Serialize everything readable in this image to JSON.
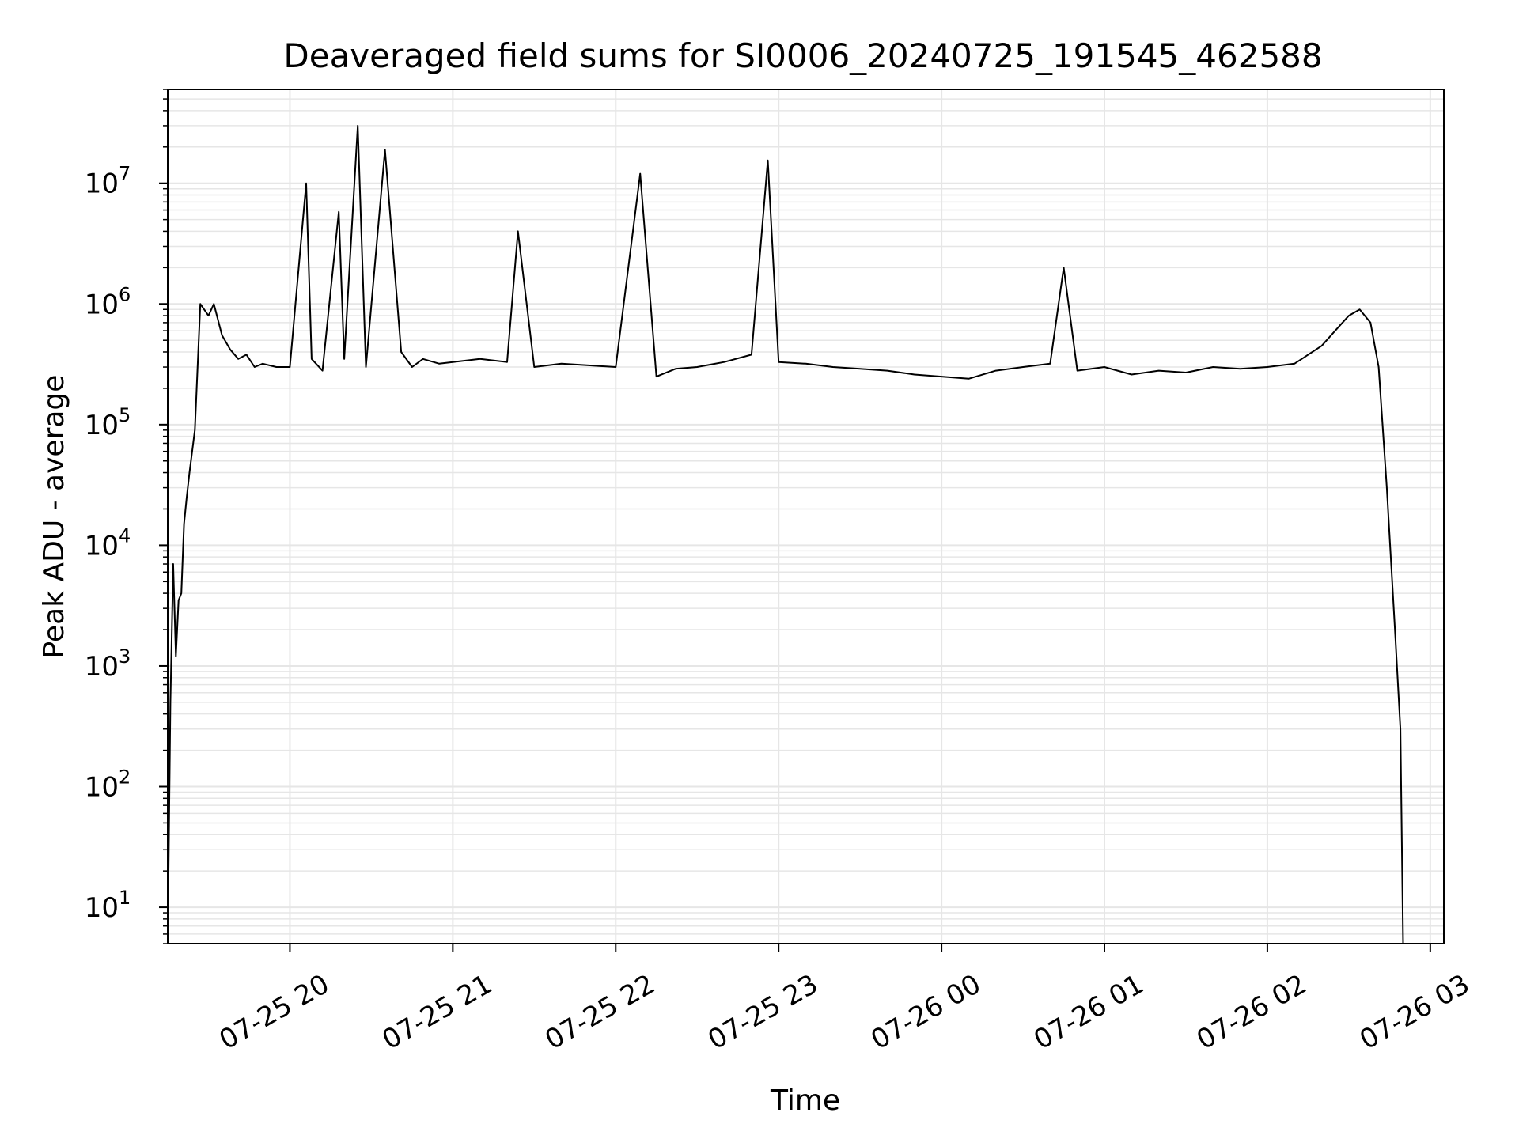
{
  "chart_data": {
    "type": "line",
    "title": "Deaveraged field sums for SI0006_20240725_191545_462588",
    "xlabel": "Time",
    "ylabel": "Peak ADU - average",
    "y_scale": "log",
    "ylim": [
      5,
      60000000
    ],
    "xlim": [
      "2024-07-25 19:15",
      "2024-07-26 03:05"
    ],
    "grid": "on (major and minor)",
    "line_color": "#000000",
    "grid_color": "#e6e6e6",
    "x_ticks": [
      {
        "t": "2024-07-25 20:00",
        "label": "07-25 20"
      },
      {
        "t": "2024-07-25 21:00",
        "label": "07-25 21"
      },
      {
        "t": "2024-07-25 22:00",
        "label": "07-25 22"
      },
      {
        "t": "2024-07-25 23:00",
        "label": "07-25 23"
      },
      {
        "t": "2024-07-26 00:00",
        "label": "07-26 00"
      },
      {
        "t": "2024-07-26 01:00",
        "label": "07-26 01"
      },
      {
        "t": "2024-07-26 02:00",
        "label": "07-26 02"
      },
      {
        "t": "2024-07-26 03:00",
        "label": "07-26 03"
      }
    ],
    "y_ticks": [
      {
        "v": 10,
        "base": "10",
        "exp": "1"
      },
      {
        "v": 100,
        "base": "10",
        "exp": "2"
      },
      {
        "v": 1000,
        "base": "10",
        "exp": "3"
      },
      {
        "v": 10000,
        "base": "10",
        "exp": "4"
      },
      {
        "v": 100000,
        "base": "10",
        "exp": "5"
      },
      {
        "v": 1000000,
        "base": "10",
        "exp": "6"
      },
      {
        "v": 10000000,
        "base": "10",
        "exp": "7"
      }
    ],
    "series": [
      {
        "x": [
          "2024-07-25 19:15",
          "2024-07-25 19:16",
          "2024-07-25 19:17",
          "2024-07-25 19:18",
          "2024-07-25 19:19",
          "2024-07-25 19:20",
          "2024-07-25 19:21",
          "2024-07-25 19:22",
          "2024-07-25 19:23",
          "2024-07-25 19:25",
          "2024-07-25 19:27",
          "2024-07-25 19:30",
          "2024-07-25 19:32",
          "2024-07-25 19:35",
          "2024-07-25 19:38",
          "2024-07-25 19:41",
          "2024-07-25 19:44",
          "2024-07-25 19:47",
          "2024-07-25 19:50",
          "2024-07-25 19:55",
          "2024-07-25 20:00",
          "2024-07-25 20:06",
          "2024-07-25 20:08",
          "2024-07-25 20:12",
          "2024-07-25 20:18",
          "2024-07-25 20:20",
          "2024-07-25 20:25",
          "2024-07-25 20:28",
          "2024-07-25 20:35",
          "2024-07-25 20:41",
          "2024-07-25 20:45",
          "2024-07-25 20:49",
          "2024-07-25 20:55",
          "2024-07-25 21:00",
          "2024-07-25 21:10",
          "2024-07-25 21:20",
          "2024-07-25 21:24",
          "2024-07-25 21:30",
          "2024-07-25 21:40",
          "2024-07-25 21:50",
          "2024-07-25 22:00",
          "2024-07-25 22:09",
          "2024-07-25 22:15",
          "2024-07-25 22:22",
          "2024-07-25 22:30",
          "2024-07-25 22:40",
          "2024-07-25 22:50",
          "2024-07-25 22:56",
          "2024-07-25 23:00",
          "2024-07-25 23:10",
          "2024-07-25 23:20",
          "2024-07-25 23:30",
          "2024-07-25 23:40",
          "2024-07-25 23:50",
          "2024-07-26 00:00",
          "2024-07-26 00:10",
          "2024-07-26 00:20",
          "2024-07-26 00:30",
          "2024-07-26 00:40",
          "2024-07-26 00:45",
          "2024-07-26 00:50",
          "2024-07-26 01:00",
          "2024-07-26 01:10",
          "2024-07-26 01:20",
          "2024-07-26 01:30",
          "2024-07-26 01:40",
          "2024-07-26 01:50",
          "2024-07-26 02:00",
          "2024-07-26 02:10",
          "2024-07-26 02:20",
          "2024-07-26 02:25",
          "2024-07-26 02:30",
          "2024-07-26 02:34",
          "2024-07-26 02:38",
          "2024-07-26 02:41",
          "2024-07-26 02:44",
          "2024-07-26 02:47",
          "2024-07-26 02:49",
          "2024-07-26 02:50"
        ],
        "y": [
          5,
          500,
          7000,
          1200,
          3500,
          4000,
          15000,
          25000,
          40000,
          90000,
          1000000,
          800000,
          1000000,
          550000,
          420000,
          350000,
          380000,
          300000,
          320000,
          300000,
          300000,
          10000000,
          350000,
          280000,
          5800000,
          350000,
          30000000,
          300000,
          19000000,
          400000,
          300000,
          350000,
          320000,
          330000,
          350000,
          330000,
          4000000,
          300000,
          320000,
          310000,
          300000,
          12000000,
          250000,
          290000,
          300000,
          330000,
          380000,
          15500000,
          330000,
          320000,
          300000,
          290000,
          280000,
          260000,
          250000,
          240000,
          280000,
          300000,
          320000,
          2000000,
          280000,
          300000,
          260000,
          280000,
          270000,
          300000,
          290000,
          300000,
          320000,
          450000,
          600000,
          800000,
          900000,
          700000,
          300000,
          30000,
          2000,
          300,
          5
        ]
      }
    ]
  }
}
